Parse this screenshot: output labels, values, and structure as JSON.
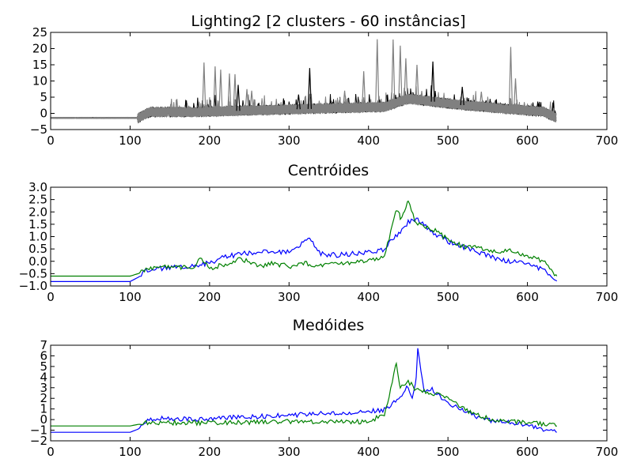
{
  "colors": {
    "background": "#ffffff",
    "axes": "#000000",
    "cluster_a": "#000000",
    "cluster_b": "#808080",
    "centroid_1": "#0000ff",
    "centroid_2": "#008000"
  },
  "chart_data": [
    {
      "type": "line",
      "title": "Lighting2 [2 clusters - 60 instâncias]",
      "xlabel": "",
      "ylabel": "",
      "xlim": [
        0,
        700
      ],
      "ylim": [
        -5,
        25
      ],
      "x_ticks": [
        "0",
        "100",
        "200",
        "300",
        "400",
        "500",
        "600",
        "700"
      ],
      "y_ticks": [
        "−5",
        "0",
        "5",
        "10",
        "15",
        "20",
        "25"
      ],
      "grid": false,
      "legend": "none",
      "x_length": 637,
      "series_note_count": 60,
      "series_groups": [
        {
          "color": "#000000",
          "count": 28
        },
        {
          "color": "#808080",
          "count": 32
        }
      ],
      "spikes": [
        {
          "x": 193,
          "y": 15.7,
          "color": "#808080"
        },
        {
          "x": 207,
          "y": 14.5,
          "color": "#808080"
        },
        {
          "x": 214,
          "y": 13.5,
          "color": "#808080"
        },
        {
          "x": 225,
          "y": 12.3,
          "color": "#808080"
        },
        {
          "x": 232,
          "y": 12.1,
          "color": "#808080"
        },
        {
          "x": 247,
          "y": 7.5,
          "color": "#808080"
        },
        {
          "x": 253,
          "y": 7.0,
          "color": "#808080"
        },
        {
          "x": 236,
          "y": 8.8,
          "color": "#000000"
        },
        {
          "x": 326,
          "y": 14.0,
          "color": "#000000"
        },
        {
          "x": 312,
          "y": 5.8,
          "color": "#000000"
        },
        {
          "x": 370,
          "y": 7.0,
          "color": "#808080"
        },
        {
          "x": 394,
          "y": 13.0,
          "color": "#808080"
        },
        {
          "x": 411,
          "y": 22.9,
          "color": "#808080"
        },
        {
          "x": 431,
          "y": 22.8,
          "color": "#808080"
        },
        {
          "x": 440,
          "y": 20.9,
          "color": "#808080"
        },
        {
          "x": 447,
          "y": 17.0,
          "color": "#808080"
        },
        {
          "x": 461,
          "y": 15.0,
          "color": "#808080"
        },
        {
          "x": 481,
          "y": 16.0,
          "color": "#000000"
        },
        {
          "x": 518,
          "y": 8.2,
          "color": "#000000"
        },
        {
          "x": 542,
          "y": 6.7,
          "color": "#808080"
        },
        {
          "x": 579,
          "y": 20.5,
          "color": "#808080"
        },
        {
          "x": 585,
          "y": 10.8,
          "color": "#808080"
        }
      ]
    },
    {
      "type": "line",
      "title": "Centróides",
      "xlabel": "",
      "ylabel": "",
      "xlim": [
        0,
        700
      ],
      "ylim": [
        -1.0,
        3.0
      ],
      "x_ticks": [
        "0",
        "100",
        "200",
        "300",
        "400",
        "500",
        "600",
        "700"
      ],
      "y_ticks": [
        "−1.0",
        "−0.5",
        "0.0",
        "0.5",
        "1.0",
        "1.5",
        "2.0",
        "2.5",
        "3.0"
      ],
      "grid": false,
      "legend": "none",
      "series": [
        {
          "color": "#0000ff",
          "x": [
            0,
            100,
            110,
            120,
            130,
            150,
            180,
            200,
            220,
            240,
            260,
            280,
            300,
            326,
            340,
            360,
            380,
            400,
            420,
            440,
            450,
            460,
            470,
            480,
            500,
            520,
            540,
            560,
            580,
            600,
            620,
            637
          ],
          "y": [
            -0.82,
            -0.82,
            -0.65,
            -0.38,
            -0.32,
            -0.25,
            -0.2,
            -0.05,
            0.18,
            0.3,
            0.35,
            0.38,
            0.38,
            0.9,
            0.3,
            0.25,
            0.3,
            0.35,
            0.5,
            1.2,
            1.6,
            1.7,
            1.5,
            1.2,
            0.8,
            0.55,
            0.35,
            0.1,
            0.0,
            -0.1,
            -0.35,
            -0.8
          ]
        },
        {
          "color": "#008000",
          "x": [
            0,
            100,
            110,
            120,
            130,
            150,
            180,
            190,
            200,
            220,
            240,
            260,
            280,
            300,
            320,
            340,
            360,
            380,
            400,
            420,
            435,
            440,
            445,
            450,
            460,
            470,
            480,
            500,
            520,
            540,
            560,
            578,
            600,
            620,
            637
          ],
          "y": [
            -0.6,
            -0.6,
            -0.5,
            -0.3,
            -0.25,
            -0.24,
            -0.22,
            0.15,
            -0.3,
            -0.1,
            0.1,
            -0.2,
            -0.1,
            -0.2,
            -0.1,
            -0.15,
            -0.1,
            -0.05,
            0.0,
            0.2,
            2.1,
            1.8,
            2.0,
            2.5,
            1.5,
            1.4,
            1.3,
            0.9,
            0.6,
            0.55,
            0.4,
            0.45,
            0.2,
            0.0,
            -0.6
          ]
        }
      ]
    },
    {
      "type": "line",
      "title": "Medóides",
      "xlabel": "",
      "ylabel": "",
      "xlim": [
        0,
        700
      ],
      "ylim": [
        -2,
        7
      ],
      "x_ticks": [
        "0",
        "100",
        "200",
        "300",
        "400",
        "500",
        "600",
        "700"
      ],
      "y_ticks": [
        "−2",
        "−1",
        "0",
        "1",
        "2",
        "3",
        "4",
        "5",
        "6",
        "7"
      ],
      "grid": false,
      "legend": "none",
      "series": [
        {
          "color": "#0000ff",
          "x": [
            0,
            100,
            110,
            120,
            130,
            150,
            180,
            200,
            250,
            300,
            350,
            380,
            400,
            420,
            440,
            450,
            455,
            460,
            462,
            470,
            480,
            500,
            520,
            540,
            560,
            580,
            600,
            620,
            637
          ],
          "y": [
            -1.2,
            -1.2,
            -0.9,
            -0.2,
            0.1,
            0.1,
            0.05,
            0.1,
            0.25,
            0.4,
            0.6,
            0.7,
            0.8,
            0.9,
            2.2,
            3.2,
            1.8,
            4.0,
            6.8,
            2.5,
            2.8,
            1.5,
            0.8,
            0.2,
            -0.2,
            -0.3,
            -0.5,
            -0.9,
            -1.2
          ]
        },
        {
          "color": "#008000",
          "x": [
            0,
            100,
            110,
            120,
            150,
            200,
            250,
            300,
            350,
            400,
            420,
            430,
            435,
            440,
            450,
            460,
            480,
            500,
            520,
            540,
            560,
            580,
            600,
            620,
            637
          ],
          "y": [
            -0.6,
            -0.6,
            -0.45,
            -0.3,
            -0.3,
            -0.3,
            -0.25,
            -0.2,
            -0.2,
            -0.2,
            0.5,
            3.5,
            5.3,
            3.0,
            3.6,
            2.8,
            2.5,
            2.2,
            1.0,
            0.3,
            -0.1,
            -0.2,
            -0.3,
            -0.4,
            -0.6
          ]
        }
      ]
    }
  ]
}
